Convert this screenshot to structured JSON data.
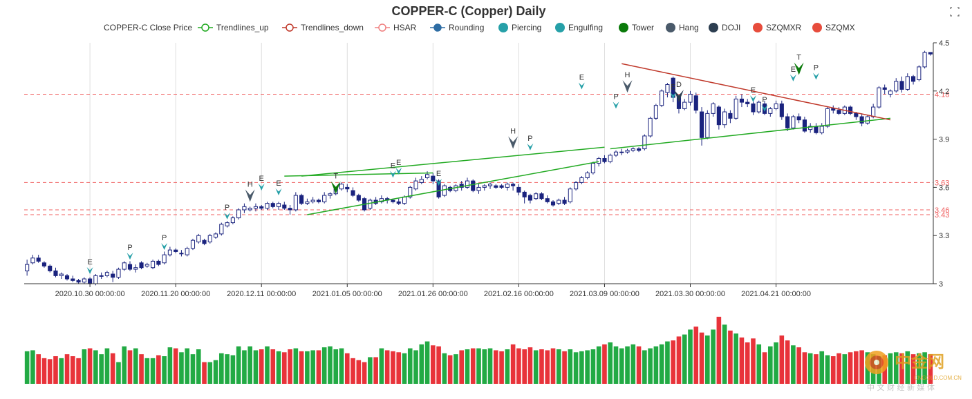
{
  "chart_data": {
    "type": "candlestick",
    "title": "COPPER-C (Copper) Daily",
    "legend": [
      {
        "label": "COPPER-C Close Price",
        "marker": "none",
        "color": "#333333"
      },
      {
        "label": "Trendlines_up",
        "marker": "line-circle",
        "color": "#22aa22"
      },
      {
        "label": "Trendlines_down",
        "marker": "line-circle",
        "color": "#c0392b"
      },
      {
        "label": "HSAR",
        "marker": "line-circle",
        "color": "#f08080"
      },
      {
        "label": "Rounding",
        "marker": "line-dot",
        "color": "#2e6da4"
      },
      {
        "label": "Piercing",
        "marker": "dot",
        "color": "#26a0a8"
      },
      {
        "label": "Engulfing",
        "marker": "dot",
        "color": "#26a0a8"
      },
      {
        "label": "Tower",
        "marker": "dot",
        "color": "#0a7a0a"
      },
      {
        "label": "Hang",
        "marker": "dot",
        "color": "#4a5a6a"
      },
      {
        "label": "DOJI",
        "marker": "dot",
        "color": "#2c3e50"
      },
      {
        "label": "SZQMXR",
        "marker": "dot",
        "color": "#e74c3c"
      },
      {
        "label": "SZQMX",
        "marker": "dot",
        "color": "#e74c3c"
      }
    ],
    "y_axis": {
      "min": 3.0,
      "max": 4.5,
      "ticks": [
        "3",
        "3.3",
        "3.6",
        "3.9",
        "4.2",
        "4.5"
      ],
      "side": "right"
    },
    "x_axis": {
      "ticks": [
        "2020.10.30 00:00:00",
        "2020.11.20 00:00:00",
        "2020.12.11 00:00:00",
        "2021.01.05 00:00:00",
        "2021.01.26 00:00:00",
        "2021.02.16 00:00:00",
        "2021.03.09 00:00:00",
        "2021.03.30 00:00:00",
        "2021.04.21 00:00:00"
      ],
      "tick_index": [
        11,
        26,
        41,
        56,
        71,
        86,
        101,
        116,
        131
      ]
    },
    "hsar_levels": [
      {
        "value": 4.18,
        "label": "4.18"
      },
      {
        "value": 3.63,
        "label": "3.63"
      },
      {
        "value": 3.46,
        "label": "3.46"
      },
      {
        "value": 3.43,
        "label": "3.43"
      }
    ],
    "candles": [
      [
        3.08,
        3.12,
        3.05,
        3.15
      ],
      [
        3.13,
        3.16,
        3.12,
        3.18
      ],
      [
        3.16,
        3.14,
        3.13,
        3.18
      ],
      [
        3.13,
        3.11,
        3.1,
        3.14
      ],
      [
        3.11,
        3.08,
        3.07,
        3.12
      ],
      [
        3.08,
        3.05,
        3.04,
        3.1
      ],
      [
        3.05,
        3.06,
        3.03,
        3.07
      ],
      [
        3.05,
        3.03,
        3.02,
        3.06
      ],
      [
        3.03,
        3.02,
        3.01,
        3.05
      ],
      [
        3.02,
        3.01,
        3.0,
        3.03
      ],
      [
        3.01,
        3.03,
        3.0,
        3.04
      ],
      [
        3.03,
        3.0,
        2.99,
        3.04
      ],
      [
        3.0,
        3.05,
        2.99,
        3.06
      ],
      [
        3.05,
        3.05,
        3.03,
        3.07
      ],
      [
        3.05,
        3.07,
        3.04,
        3.08
      ],
      [
        3.06,
        3.04,
        3.01,
        3.08
      ],
      [
        3.04,
        3.09,
        3.03,
        3.1
      ],
      [
        3.09,
        3.13,
        3.08,
        3.14
      ],
      [
        3.12,
        3.09,
        3.08,
        3.14
      ],
      [
        3.09,
        3.1,
        3.07,
        3.12
      ],
      [
        3.13,
        3.1,
        3.09,
        3.14
      ],
      [
        3.11,
        3.12,
        3.1,
        3.13
      ],
      [
        3.1,
        3.14,
        3.09,
        3.15
      ],
      [
        3.14,
        3.12,
        3.11,
        3.15
      ],
      [
        3.13,
        3.18,
        3.12,
        3.2
      ],
      [
        3.18,
        3.21,
        3.17,
        3.23
      ],
      [
        3.21,
        3.2,
        3.19,
        3.22
      ],
      [
        3.19,
        3.19,
        3.17,
        3.21
      ],
      [
        3.18,
        3.22,
        3.17,
        3.23
      ],
      [
        3.22,
        3.27,
        3.21,
        3.28
      ],
      [
        3.26,
        3.3,
        3.25,
        3.31
      ],
      [
        3.27,
        3.25,
        3.24,
        3.28
      ],
      [
        3.26,
        3.3,
        3.25,
        3.31
      ],
      [
        3.29,
        3.31,
        3.28,
        3.32
      ],
      [
        3.31,
        3.37,
        3.3,
        3.38
      ],
      [
        3.36,
        3.38,
        3.35,
        3.39
      ],
      [
        3.38,
        3.41,
        3.37,
        3.42
      ],
      [
        3.41,
        3.46,
        3.4,
        3.47
      ],
      [
        3.46,
        3.48,
        3.44,
        3.5
      ],
      [
        3.46,
        3.47,
        3.45,
        3.48
      ],
      [
        3.47,
        3.48,
        3.45,
        3.5
      ],
      [
        3.48,
        3.47,
        3.46,
        3.49
      ],
      [
        3.47,
        3.5,
        3.46,
        3.51
      ],
      [
        3.5,
        3.48,
        3.47,
        3.51
      ],
      [
        3.48,
        3.5,
        3.46,
        3.51
      ],
      [
        3.49,
        3.47,
        3.46,
        3.51
      ],
      [
        3.47,
        3.46,
        3.43,
        3.49
      ],
      [
        3.46,
        3.55,
        3.45,
        3.57
      ],
      [
        3.55,
        3.5,
        3.49,
        3.56
      ],
      [
        3.5,
        3.51,
        3.49,
        3.53
      ],
      [
        3.51,
        3.52,
        3.5,
        3.54
      ],
      [
        3.52,
        3.51,
        3.5,
        3.53
      ],
      [
        3.51,
        3.55,
        3.5,
        3.57
      ],
      [
        3.55,
        3.56,
        3.53,
        3.57
      ],
      [
        3.56,
        3.59,
        3.55,
        3.6
      ],
      [
        3.59,
        3.62,
        3.58,
        3.63
      ],
      [
        3.6,
        3.59,
        3.57,
        3.62
      ],
      [
        3.58,
        3.55,
        3.54,
        3.6
      ],
      [
        3.55,
        3.52,
        3.51,
        3.56
      ],
      [
        3.53,
        3.46,
        3.45,
        3.54
      ],
      [
        3.47,
        3.52,
        3.46,
        3.53
      ],
      [
        3.52,
        3.5,
        3.49,
        3.54
      ],
      [
        3.51,
        3.53,
        3.5,
        3.55
      ],
      [
        3.53,
        3.52,
        3.5,
        3.54
      ],
      [
        3.52,
        3.51,
        3.5,
        3.53
      ],
      [
        3.51,
        3.5,
        3.49,
        3.53
      ],
      [
        3.5,
        3.54,
        3.49,
        3.55
      ],
      [
        3.54,
        3.6,
        3.53,
        3.61
      ],
      [
        3.59,
        3.64,
        3.58,
        3.66
      ],
      [
        3.63,
        3.65,
        3.62,
        3.67
      ],
      [
        3.66,
        3.68,
        3.65,
        3.7
      ],
      [
        3.67,
        3.64,
        3.62,
        3.69
      ],
      [
        3.64,
        3.54,
        3.53,
        3.65
      ],
      [
        3.55,
        3.61,
        3.54,
        3.62
      ],
      [
        3.6,
        3.58,
        3.57,
        3.61
      ],
      [
        3.58,
        3.61,
        3.57,
        3.62
      ],
      [
        3.62,
        3.6,
        3.58,
        3.64
      ],
      [
        3.6,
        3.64,
        3.59,
        3.66
      ],
      [
        3.64,
        3.58,
        3.57,
        3.65
      ],
      [
        3.58,
        3.6,
        3.56,
        3.62
      ],
      [
        3.6,
        3.61,
        3.58,
        3.62
      ],
      [
        3.61,
        3.62,
        3.59,
        3.63
      ],
      [
        3.61,
        3.6,
        3.59,
        3.62
      ],
      [
        3.61,
        3.6,
        3.59,
        3.62
      ],
      [
        3.6,
        3.62,
        3.58,
        3.63
      ],
      [
        3.62,
        3.61,
        3.58,
        3.63
      ],
      [
        3.6,
        3.57,
        3.55,
        3.62
      ],
      [
        3.57,
        3.54,
        3.5,
        3.58
      ],
      [
        3.55,
        3.52,
        3.5,
        3.56
      ],
      [
        3.53,
        3.56,
        3.52,
        3.57
      ],
      [
        3.56,
        3.53,
        3.52,
        3.57
      ],
      [
        3.53,
        3.51,
        3.5,
        3.55
      ],
      [
        3.51,
        3.49,
        3.48,
        3.52
      ],
      [
        3.5,
        3.52,
        3.49,
        3.53
      ],
      [
        3.52,
        3.5,
        3.49,
        3.54
      ],
      [
        3.51,
        3.59,
        3.5,
        3.6
      ],
      [
        3.59,
        3.63,
        3.58,
        3.64
      ],
      [
        3.63,
        3.66,
        3.62,
        3.67
      ],
      [
        3.66,
        3.69,
        3.65,
        3.7
      ],
      [
        3.69,
        3.75,
        3.68,
        3.76
      ],
      [
        3.75,
        3.78,
        3.73,
        3.79
      ],
      [
        3.78,
        3.76,
        3.75,
        3.8
      ],
      [
        3.76,
        3.8,
        3.75,
        3.81
      ],
      [
        3.8,
        3.82,
        3.79,
        3.83
      ],
      [
        3.82,
        3.82,
        3.8,
        3.84
      ],
      [
        3.82,
        3.83,
        3.81,
        3.84
      ],
      [
        3.83,
        3.84,
        3.82,
        3.85
      ],
      [
        3.84,
        3.83,
        3.82,
        3.85
      ],
      [
        3.84,
        3.92,
        3.83,
        3.93
      ],
      [
        3.92,
        4.03,
        3.91,
        4.04
      ],
      [
        4.03,
        4.11,
        4.02,
        4.12
      ],
      [
        4.11,
        4.2,
        4.1,
        4.21
      ],
      [
        4.19,
        4.24,
        4.16,
        4.25
      ],
      [
        4.28,
        4.16,
        4.13,
        4.29
      ],
      [
        4.16,
        4.09,
        4.06,
        4.17
      ],
      [
        4.09,
        4.13,
        4.08,
        4.15
      ],
      [
        4.13,
        4.18,
        4.11,
        4.2
      ],
      [
        4.17,
        4.08,
        4.06,
        4.19
      ],
      [
        4.07,
        3.91,
        3.86,
        4.1
      ],
      [
        3.91,
        4.06,
        3.9,
        4.08
      ],
      [
        4.06,
        4.12,
        4.04,
        4.13
      ],
      [
        4.1,
        3.99,
        3.96,
        4.11
      ],
      [
        3.99,
        4.07,
        3.97,
        4.09
      ],
      [
        4.06,
        4.03,
        4.0,
        4.08
      ],
      [
        4.03,
        4.15,
        4.02,
        4.17
      ],
      [
        4.15,
        4.13,
        4.1,
        4.18
      ],
      [
        4.13,
        4.12,
        4.1,
        4.15
      ],
      [
        4.12,
        4.07,
        4.05,
        4.14
      ],
      [
        4.07,
        4.13,
        4.06,
        4.14
      ],
      [
        4.12,
        4.06,
        4.05,
        4.14
      ],
      [
        4.06,
        4.09,
        4.04,
        4.1
      ],
      [
        4.09,
        4.12,
        4.08,
        4.14
      ],
      [
        4.12,
        4.04,
        4.02,
        4.14
      ],
      [
        4.04,
        3.97,
        3.95,
        4.06
      ],
      [
        3.97,
        4.04,
        3.96,
        4.05
      ],
      [
        4.04,
        4.02,
        4.0,
        4.06
      ],
      [
        4.02,
        3.95,
        3.94,
        4.04
      ],
      [
        3.96,
        3.98,
        3.94,
        4.0
      ],
      [
        3.98,
        3.94,
        3.93,
        4.0
      ],
      [
        3.94,
        3.98,
        3.93,
        4.0
      ],
      [
        3.98,
        4.09,
        3.97,
        4.1
      ],
      [
        4.09,
        4.08,
        4.06,
        4.11
      ],
      [
        4.08,
        4.06,
        4.05,
        4.1
      ],
      [
        4.06,
        4.1,
        4.05,
        4.11
      ],
      [
        4.1,
        4.06,
        4.05,
        4.11
      ],
      [
        4.06,
        4.04,
        4.02,
        4.07
      ],
      [
        4.04,
        4.0,
        3.98,
        4.06
      ],
      [
        4.0,
        4.04,
        3.99,
        4.05
      ],
      [
        4.04,
        4.1,
        4.03,
        4.12
      ],
      [
        4.1,
        4.22,
        4.09,
        4.23
      ],
      [
        4.22,
        4.21,
        4.18,
        4.24
      ],
      [
        4.18,
        4.2,
        4.16,
        4.21
      ],
      [
        4.2,
        4.26,
        4.19,
        4.28
      ],
      [
        4.26,
        4.21,
        4.19,
        4.29
      ],
      [
        4.21,
        4.29,
        4.2,
        4.31
      ],
      [
        4.29,
        4.26,
        4.24,
        4.3
      ],
      [
        4.27,
        4.35,
        4.26,
        4.36
      ],
      [
        4.35,
        4.44,
        4.34,
        4.45
      ],
      [
        4.44,
        4.43,
        4.42,
        4.44
      ]
    ],
    "volume": [
      33,
      34,
      30,
      26,
      25,
      28,
      26,
      30,
      28,
      26,
      35,
      36,
      34,
      30,
      36,
      31,
      22,
      38,
      34,
      36,
      30,
      26,
      26,
      29,
      28,
      37,
      36,
      32,
      36,
      30,
      35,
      22,
      22,
      24,
      31,
      30,
      29,
      38,
      34,
      38,
      34,
      35,
      38,
      35,
      33,
      32,
      35,
      36,
      33,
      33,
      34,
      34,
      37,
      38,
      35,
      36,
      31,
      26,
      24,
      22,
      27,
      27,
      36,
      34,
      33,
      32,
      31,
      36,
      34,
      40,
      43,
      39,
      38,
      31,
      29,
      30,
      34,
      35,
      36,
      36,
      35,
      36,
      34,
      33,
      35,
      40,
      36,
      35,
      37,
      34,
      35,
      34,
      36,
      35,
      33,
      35,
      32,
      33,
      34,
      35,
      38,
      40,
      42,
      38,
      36,
      38,
      40,
      38,
      34,
      36,
      38,
      40,
      43,
      44,
      48,
      50,
      55,
      58,
      52,
      49,
      55,
      68,
      60,
      54,
      51,
      47,
      42,
      46,
      40,
      32,
      38,
      42,
      49,
      44,
      39,
      37,
      32,
      31,
      30,
      33,
      29,
      28,
      31,
      30,
      32,
      33,
      34,
      32,
      30,
      28,
      29,
      31,
      32,
      31,
      33,
      30,
      31,
      32,
      30,
      28,
      29,
      30
    ],
    "trendlines_up": [
      {
        "from": [
          45,
          3.67
        ],
        "to": [
          71,
          3.69
        ]
      },
      {
        "from": [
          48,
          3.67
        ],
        "to": [
          101,
          3.85
        ]
      },
      {
        "from": [
          49,
          3.43
        ],
        "to": [
          100,
          3.76
        ]
      },
      {
        "from": [
          102,
          3.84
        ],
        "to": [
          151,
          4.03
        ]
      }
    ],
    "trendlines_down": [
      {
        "from": [
          104,
          4.37
        ],
        "to": [
          151,
          4.02
        ]
      }
    ],
    "pattern_marks": [
      {
        "i": 11,
        "label": "E",
        "type": "Engulfing",
        "above": false,
        "price": 3.06
      },
      {
        "i": 18,
        "label": "P",
        "type": "Piercing",
        "above": false,
        "price": 3.15
      },
      {
        "i": 24,
        "label": "P",
        "type": "Piercing",
        "above": false,
        "price": 3.21
      },
      {
        "i": 35,
        "label": "P",
        "type": "Piercing",
        "above": false,
        "price": 3.4
      },
      {
        "i": 39,
        "label": "H",
        "type": "Hang",
        "above": false,
        "price": 3.51
      },
      {
        "i": 41,
        "label": "E",
        "type": "Engulfing",
        "above": false,
        "price": 3.58
      },
      {
        "i": 44,
        "label": "E",
        "type": "Engulfing",
        "above": false,
        "price": 3.55
      },
      {
        "i": 54,
        "label": "T",
        "type": "Tower",
        "above": false,
        "price": 3.56
      },
      {
        "i": 64,
        "label": "E",
        "type": "Engulfing",
        "above": false,
        "price": 3.66
      },
      {
        "i": 65,
        "label": "E",
        "type": "Engulfing",
        "above": false,
        "price": 3.68
      },
      {
        "i": 72,
        "label": "E",
        "type": "Engulfing",
        "above": false,
        "price": 3.61
      },
      {
        "i": 85,
        "label": "H",
        "type": "Hang",
        "above": false,
        "price": 3.84
      },
      {
        "i": 88,
        "label": "P",
        "type": "Piercing",
        "above": false,
        "price": 3.83
      },
      {
        "i": 97,
        "label": "E",
        "type": "Engulfing",
        "above": false,
        "price": 4.21
      },
      {
        "i": 103,
        "label": "P",
        "type": "Piercing",
        "above": false,
        "price": 4.09
      },
      {
        "i": 105,
        "label": "H",
        "type": "Hang",
        "above": false,
        "price": 4.19
      },
      {
        "i": 113,
        "label": "E",
        "type": "Engulfing",
        "above": false,
        "price": 4.15
      },
      {
        "i": 114,
        "label": "D",
        "type": "DOJI",
        "above": false,
        "price": 4.13
      },
      {
        "i": 127,
        "label": "E",
        "type": "Engulfing",
        "above": false,
        "price": 4.13
      },
      {
        "i": 129,
        "label": "P",
        "type": "Piercing",
        "above": false,
        "price": 4.07
      },
      {
        "i": 134,
        "label": "E",
        "type": "Engulfing",
        "above": false,
        "price": 4.26
      },
      {
        "i": 135,
        "label": "T",
        "type": "Tower",
        "above": false,
        "price": 4.3
      },
      {
        "i": 138,
        "label": "P",
        "type": "Piercing",
        "above": false,
        "price": 4.27
      }
    ]
  },
  "colors": {
    "up_candle_border": "#1a237e",
    "down_candle_fill": "#1a237e",
    "hsar": "#f06060",
    "trend_up": "#22aa22",
    "trend_down": "#c0392b",
    "vol_up": "#22aa44",
    "vol_down": "#e8333a",
    "piercing": "#26a0a8",
    "engulfing": "#26a0a8",
    "tower": "#0a7a0a",
    "hang": "#4a5a6a",
    "doji": "#2c3e50"
  },
  "watermark": {
    "brand": "中金网",
    "url": "CNGOLD.COM.CN",
    "slogan": "中 文 财 经 新 媒 体"
  }
}
